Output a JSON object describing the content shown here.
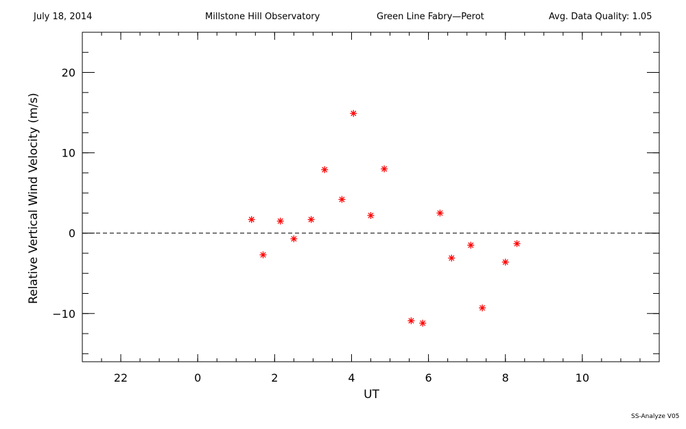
{
  "header": {
    "date": "July 18, 2014",
    "observatory": "Millstone Hill Observatory",
    "instrument": "Green Line Fabry—Perot",
    "quality": "Avg. Data Quality: 1.05"
  },
  "footer": {
    "software": "SS-Analyze V05"
  },
  "colors": {
    "marker": "#ff0000",
    "axis": "#000000",
    "zero_line": "#000000"
  },
  "chart_data": {
    "type": "scatter",
    "title": "",
    "xlabel": "UT",
    "ylabel": "Relative Vertical Wind Velocity (m/s)",
    "xlim": [
      -3,
      12
    ],
    "ylim": [
      -16,
      25
    ],
    "x_major_ticks": [
      -2,
      0,
      2,
      4,
      6,
      8,
      10
    ],
    "x_tick_labels": [
      "22",
      "0",
      "2",
      "4",
      "6",
      "8",
      "10"
    ],
    "x_minor_step": 0.5,
    "y_major_ticks": [
      -10,
      0,
      10,
      20
    ],
    "y_tick_labels": [
      "−10",
      "0",
      "10",
      "20"
    ],
    "y_minor_step": 2.5,
    "reference_line": {
      "y": 0,
      "style": "dashed"
    },
    "grid": false,
    "marker": "asterisk",
    "x": [
      1.4,
      1.7,
      2.15,
      2.5,
      2.95,
      3.3,
      3.75,
      4.05,
      4.5,
      4.85,
      5.55,
      5.85,
      6.3,
      6.6,
      7.1,
      7.4,
      8.0,
      8.3
    ],
    "y": [
      1.7,
      -2.7,
      1.5,
      -0.7,
      1.7,
      7.9,
      4.2,
      14.9,
      2.2,
      8.0,
      -10.9,
      -11.2,
      2.5,
      -3.1,
      -1.5,
      -9.3,
      -3.6,
      -1.3
    ]
  }
}
